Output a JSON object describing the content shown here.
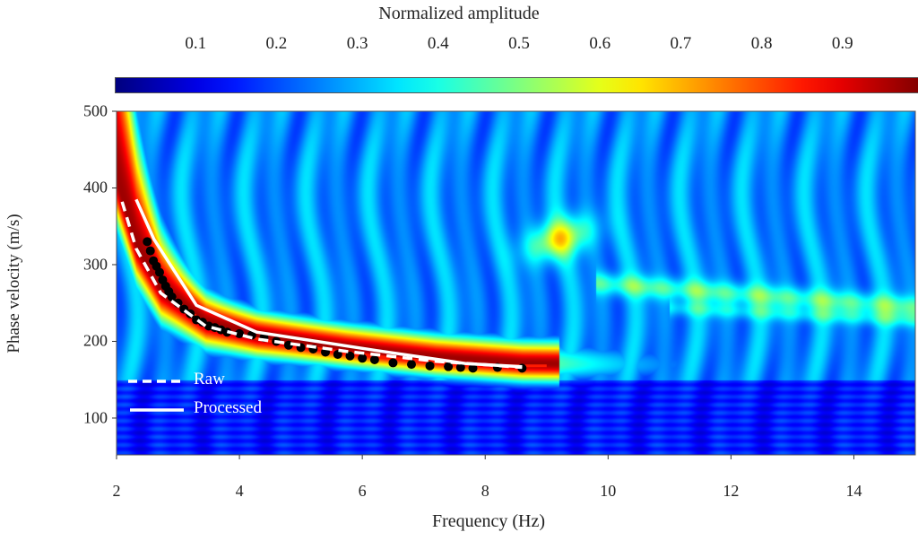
{
  "chart_data": {
    "type": "heatmap",
    "title": "",
    "colorbar": {
      "label": "Normalized amplitude",
      "ticks": [
        0.1,
        0.2,
        0.3,
        0.4,
        0.5,
        0.6,
        0.7,
        0.8,
        0.9
      ],
      "tick_labels": [
        "0.1",
        "0.2",
        "0.3",
        "0.4",
        "0.5",
        "0.6",
        "0.7",
        "0.8",
        "0.9"
      ],
      "range": [
        0,
        1
      ],
      "colormap": "jet"
    },
    "xlabel": "Frequency (Hz)",
    "ylabel": "Phase velocity (m/s)",
    "xlim": [
      2,
      15
    ],
    "ylim": [
      52,
      500
    ],
    "xticks": [
      2,
      4,
      6,
      8,
      10,
      12,
      14
    ],
    "xtick_labels": [
      "2",
      "4",
      "6",
      "8",
      "10",
      "12",
      "14"
    ],
    "yticks": [
      100,
      200,
      300,
      400,
      500
    ],
    "ytick_labels": [
      "100",
      "200",
      "300",
      "400",
      "500"
    ],
    "legend": {
      "placement": "lower-left",
      "entries": [
        {
          "label": "Raw",
          "style": "dashed",
          "color": "#ffffff"
        },
        {
          "label": "Processed",
          "style": "solid",
          "color": "#ffffff"
        }
      ]
    },
    "series": [
      {
        "name": "Raw",
        "x": [
          2.09,
          2.32,
          2.72,
          3.45,
          4.28,
          5.74,
          7.2,
          8.6
        ],
        "y": [
          382,
          321,
          263,
          220,
          203,
          187,
          174,
          166
        ]
      },
      {
        "name": "Processed",
        "x": [
          2.32,
          2.61,
          3.3,
          4.28,
          6.23,
          7.69,
          8.6
        ],
        "y": [
          385,
          333,
          247,
          212,
          188,
          171,
          167
        ]
      },
      {
        "name": "Picked maxima (red)",
        "x": [
          2.6,
          3.0,
          3.6,
          4.5,
          5.5,
          6.5,
          7.5,
          8.3,
          9.0
        ],
        "y": [
          300,
          250,
          215,
          200,
          188,
          178,
          171,
          168,
          168
        ]
      },
      {
        "name": "Data points",
        "x": [
          2.5,
          2.55,
          2.6,
          2.65,
          2.7,
          2.75,
          2.8,
          2.85,
          2.9,
          3.0,
          3.1,
          3.2,
          3.3,
          3.4,
          3.5,
          3.6,
          3.7,
          3.8,
          4.0,
          4.2,
          4.4,
          4.6,
          4.8,
          5.0,
          5.2,
          5.4,
          5.6,
          5.8,
          6.0,
          6.2,
          6.5,
          6.8,
          7.1,
          7.4,
          7.6,
          7.8,
          8.2,
          8.6
        ],
        "y": [
          330,
          318,
          305,
          298,
          290,
          280,
          272,
          265,
          258,
          250,
          242,
          236,
          228,
          225,
          220,
          218,
          215,
          212,
          210,
          208,
          205,
          200,
          195,
          192,
          190,
          186,
          183,
          181,
          178,
          176,
          172,
          170,
          168,
          167,
          166,
          165,
          166,
          165
        ]
      }
    ]
  }
}
